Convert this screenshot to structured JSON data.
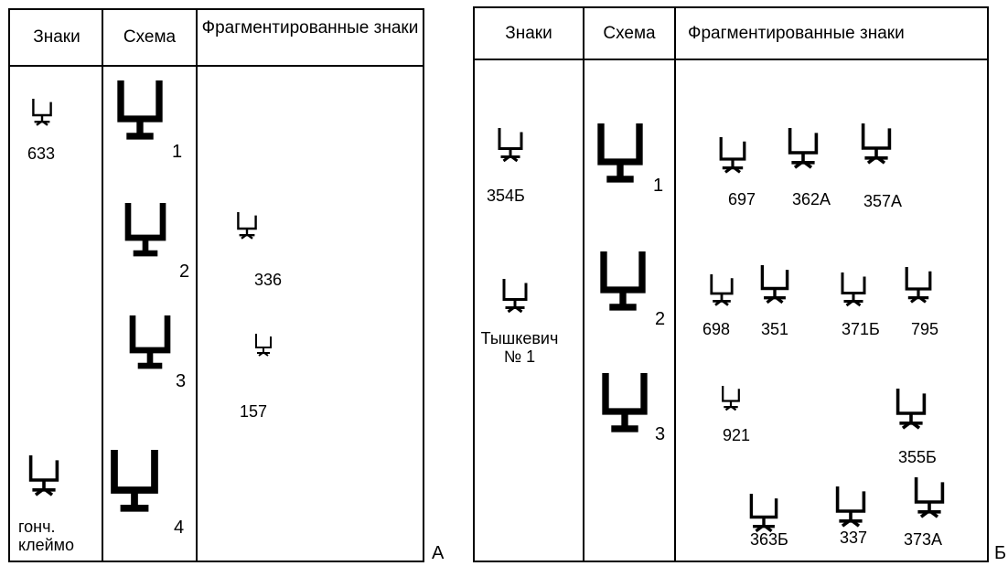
{
  "panel_a": {
    "headers": [
      "Знаки",
      "Схема",
      "Фрагментированные знаки"
    ],
    "signs": [
      "633",
      "гонч. клеймо"
    ],
    "schemes": [
      "1",
      "2",
      "3",
      "4"
    ],
    "fragments": [
      "336",
      "157"
    ],
    "label": "А"
  },
  "panel_b": {
    "headers": [
      "Знаки",
      "Схема",
      "Фрагментированные знаки"
    ],
    "signs": [
      "354Б",
      "Тышкевич № 1"
    ],
    "schemes": [
      "1",
      "2",
      "3"
    ],
    "fragments": [
      "697",
      "362А",
      "357А",
      "698",
      "351",
      "371Б",
      "795",
      "921",
      "355Б",
      "363Б",
      "337",
      "373А"
    ],
    "label": "Б"
  }
}
